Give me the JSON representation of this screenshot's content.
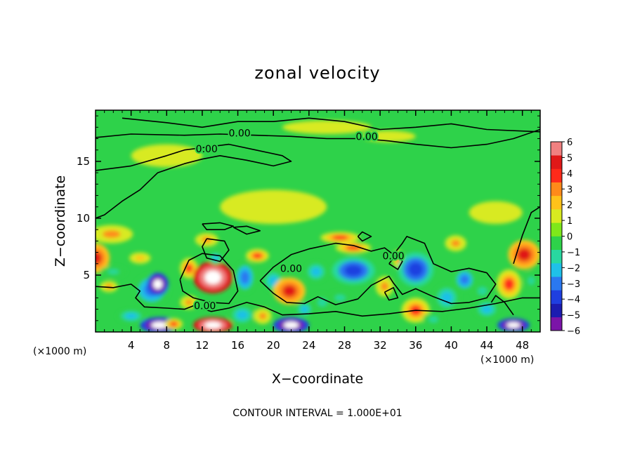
{
  "chart_data": {
    "type": "heatmap",
    "title": "zonal velocity",
    "xlabel": "X−coordinate",
    "ylabel": "Z−coordinate",
    "x_unit_left": "(×1000 m)",
    "x_unit_right": "(×1000 m)",
    "footer": "CONTOUR INTERVAL = 1.000E+01",
    "xlim": [
      0,
      50
    ],
    "ylim": [
      0,
      19.5
    ],
    "x_ticks": [
      4,
      8,
      12,
      16,
      20,
      24,
      28,
      32,
      36,
      40,
      44,
      48
    ],
    "x_tick_labels": [
      "4",
      "8",
      "12",
      "16",
      "20",
      "24",
      "28",
      "32",
      "36",
      "40",
      "44",
      "48"
    ],
    "y_ticks": [
      5,
      10,
      15
    ],
    "y_tick_labels": [
      "5",
      "10",
      "15"
    ],
    "contour_labels": [
      {
        "text": "0.00",
        "x": 16.2,
        "z": 17.5
      },
      {
        "text": "0.00",
        "x": 12.5,
        "z": 16.1
      },
      {
        "text": "0.00",
        "x": 30.5,
        "z": 17.2
      },
      {
        "text": "0.00",
        "x": 22.0,
        "z": 5.6
      },
      {
        "text": "0.00",
        "x": 12.3,
        "z": 2.3
      },
      {
        "text": "0.00",
        "x": 33.5,
        "z": 6.7
      }
    ],
    "colorbar": {
      "levels": [
        -6,
        -5,
        -4,
        -3,
        -2,
        -1,
        0,
        1,
        2,
        3,
        4,
        5,
        6
      ],
      "labels": [
        "−6",
        "−5",
        "−4",
        "−3",
        "−2",
        "−1",
        "0",
        "1",
        "2",
        "3",
        "4",
        "5",
        "6"
      ],
      "colors": [
        "#7b14a8",
        "#1c1cb0",
        "#1f3fe0",
        "#2a78f0",
        "#1fc0e8",
        "#28d8a0",
        "#2ed24a",
        "#7ee81a",
        "#d8ea20",
        "#ffc21a",
        "#ff8a1a",
        "#ff2a1a",
        "#e01818",
        "#f08080"
      ]
    },
    "features": [
      {
        "x": 0.0,
        "z": 6.5,
        "v": 5,
        "rx": 1.6,
        "rz": 1.3
      },
      {
        "x": 2.0,
        "z": 5.3,
        "v": -2,
        "rx": 1.5,
        "rz": 0.5
      },
      {
        "x": 1.5,
        "z": 4.0,
        "v": 3,
        "rx": 1.0,
        "rz": 0.5
      },
      {
        "x": 1.8,
        "z": 8.6,
        "v": 3,
        "rx": 2.4,
        "rz": 0.8
      },
      {
        "x": 5.0,
        "z": 6.5,
        "v": 2,
        "rx": 1.2,
        "rz": 0.5
      },
      {
        "x": 6.3,
        "z": 3.7,
        "v": -4,
        "rx": 2.0,
        "rz": 1.4
      },
      {
        "x": 7.0,
        "z": 4.2,
        "v": -8,
        "rx": 1.2,
        "rz": 1.0
      },
      {
        "x": 7.2,
        "z": 0.6,
        "v": -8,
        "rx": 2.2,
        "rz": 0.7
      },
      {
        "x": 4.0,
        "z": 1.4,
        "v": -3,
        "rx": 1.6,
        "rz": 0.6
      },
      {
        "x": 8.8,
        "z": 0.7,
        "v": 4,
        "rx": 1.0,
        "rz": 0.5
      },
      {
        "x": 10.5,
        "z": 5.6,
        "v": 4,
        "rx": 1.0,
        "rz": 0.9
      },
      {
        "x": 13.2,
        "z": 4.8,
        "v": 8,
        "rx": 2.2,
        "rz": 1.4
      },
      {
        "x": 13.2,
        "z": 0.6,
        "v": 8,
        "rx": 2.2,
        "rz": 0.7
      },
      {
        "x": 10.5,
        "z": 2.6,
        "v": 3,
        "rx": 1.0,
        "rz": 0.6
      },
      {
        "x": 12.5,
        "z": 8.1,
        "v": 3,
        "rx": 1.3,
        "rz": 0.6
      },
      {
        "x": 13.5,
        "z": 6.5,
        "v": -3,
        "rx": 0.8,
        "rz": 0.6
      },
      {
        "x": 16.8,
        "z": 4.8,
        "v": -4,
        "rx": 1.2,
        "rz": 1.4
      },
      {
        "x": 16.5,
        "z": 1.5,
        "v": -3,
        "rx": 1.5,
        "rz": 0.9
      },
      {
        "x": 18.2,
        "z": 6.7,
        "v": 4,
        "rx": 1.3,
        "rz": 0.6
      },
      {
        "x": 18.8,
        "z": 1.4,
        "v": 3,
        "rx": 1.0,
        "rz": 0.7
      },
      {
        "x": 20.0,
        "z": 4.5,
        "v": -3,
        "rx": 1.2,
        "rz": 1.0
      },
      {
        "x": 21.8,
        "z": 3.6,
        "v": 5,
        "rx": 1.8,
        "rz": 1.2
      },
      {
        "x": 22.0,
        "z": 0.6,
        "v": -8,
        "rx": 2.0,
        "rz": 0.7
      },
      {
        "x": 23.5,
        "z": 2.0,
        "v": -3,
        "rx": 1.0,
        "rz": 0.7
      },
      {
        "x": 24.8,
        "z": 5.3,
        "v": -3,
        "rx": 1.3,
        "rz": 0.9
      },
      {
        "x": 25.5,
        "z": 2.6,
        "v": -2,
        "rx": 1.2,
        "rz": 0.8
      },
      {
        "x": 27.5,
        "z": 8.3,
        "v": 4,
        "rx": 2.2,
        "rz": 0.5
      },
      {
        "x": 29.0,
        "z": 5.4,
        "v": -5,
        "rx": 2.4,
        "rz": 1.2
      },
      {
        "x": 29.0,
        "z": 7.4,
        "v": 4,
        "rx": 2.0,
        "rz": 0.5
      },
      {
        "x": 27.5,
        "z": 3.0,
        "v": -2,
        "rx": 1.4,
        "rz": 0.6
      },
      {
        "x": 32.5,
        "z": 4.0,
        "v": 3,
        "rx": 1.0,
        "rz": 0.9
      },
      {
        "x": 34.0,
        "z": 6.4,
        "v": 3,
        "rx": 0.6,
        "rz": 0.8
      },
      {
        "x": 36.0,
        "z": 5.5,
        "v": -5,
        "rx": 2.0,
        "rz": 1.5
      },
      {
        "x": 36.0,
        "z": 1.9,
        "v": 4,
        "rx": 1.6,
        "rz": 1.1
      },
      {
        "x": 38.0,
        "z": 1.1,
        "v": -2,
        "rx": 1.2,
        "rz": 0.6
      },
      {
        "x": 39.5,
        "z": 3.0,
        "v": -3,
        "rx": 1.5,
        "rz": 1.2
      },
      {
        "x": 40.5,
        "z": 7.8,
        "v": 3,
        "rx": 1.2,
        "rz": 0.7
      },
      {
        "x": 41.5,
        "z": 4.6,
        "v": -4,
        "rx": 1.2,
        "rz": 1.0
      },
      {
        "x": 43.5,
        "z": 3.6,
        "v": -2,
        "rx": 1.2,
        "rz": 0.8
      },
      {
        "x": 44.0,
        "z": 2.0,
        "v": -3,
        "rx": 1.4,
        "rz": 0.8
      },
      {
        "x": 46.5,
        "z": 4.2,
        "v": 4,
        "rx": 1.4,
        "rz": 1.3
      },
      {
        "x": 48.2,
        "z": 6.8,
        "v": 5,
        "rx": 1.8,
        "rz": 1.3
      },
      {
        "x": 47.0,
        "z": 0.6,
        "v": -8,
        "rx": 1.8,
        "rz": 0.6
      },
      {
        "x": 49.0,
        "z": 4.5,
        "v": -2,
        "rx": 0.8,
        "rz": 0.8
      },
      {
        "x": 26.0,
        "z": 18.0,
        "v": 1.5,
        "rx": 5.0,
        "rz": 0.6
      },
      {
        "x": 33.0,
        "z": 17.2,
        "v": 1.5,
        "rx": 3.0,
        "rz": 0.5
      },
      {
        "x": 8.0,
        "z": 15.5,
        "v": 1.2,
        "rx": 4.0,
        "rz": 1.0
      },
      {
        "x": 45.0,
        "z": 10.5,
        "v": 1.2,
        "rx": 3.0,
        "rz": 1.0
      },
      {
        "x": 20.0,
        "z": 11.0,
        "v": 1.0,
        "rx": 6.0,
        "rz": 1.5
      }
    ],
    "contours": [
      [
        [
          0,
          17.1
        ],
        [
          4,
          17.4
        ],
        [
          10,
          17.3
        ],
        [
          14,
          17.4
        ],
        [
          18,
          17.3
        ],
        [
          22,
          17.2
        ],
        [
          26,
          17.0
        ],
        [
          30,
          17.0
        ],
        [
          33,
          16.8
        ],
        [
          36,
          16.5
        ],
        [
          40,
          16.2
        ],
        [
          44,
          16.5
        ],
        [
          47,
          17.0
        ],
        [
          50,
          17.8
        ]
      ],
      [
        [
          3,
          18.8
        ],
        [
          8,
          18.4
        ],
        [
          12,
          18.0
        ],
        [
          16,
          18.5
        ],
        [
          20,
          18.5
        ],
        [
          24,
          18.8
        ],
        [
          28,
          18.5
        ],
        [
          32,
          17.8
        ],
        [
          36,
          18.0
        ],
        [
          40,
          18.3
        ],
        [
          44,
          17.8
        ],
        [
          50,
          17.6
        ]
      ],
      [
        [
          0,
          14.2
        ],
        [
          4,
          14.6
        ],
        [
          8,
          15.5
        ],
        [
          10,
          16.0
        ],
        [
          12,
          16.2
        ],
        [
          15,
          16.5
        ],
        [
          18,
          16.0
        ],
        [
          21,
          15.5
        ],
        [
          22,
          15.0
        ],
        [
          20,
          14.6
        ],
        [
          17,
          15.1
        ],
        [
          14,
          15.5
        ],
        [
          12,
          15.2
        ],
        [
          10,
          14.8
        ],
        [
          7,
          14.0
        ],
        [
          5,
          12.5
        ],
        [
          3,
          11.5
        ],
        [
          1,
          10.3
        ],
        [
          0,
          10.0
        ]
      ],
      [
        [
          0,
          4.0
        ],
        [
          2,
          3.9
        ],
        [
          4,
          4.2
        ],
        [
          5,
          3.6
        ],
        [
          4.5,
          3.0
        ],
        [
          5.5,
          2.2
        ],
        [
          8,
          2.1
        ],
        [
          10,
          2.0
        ],
        [
          11,
          2.3
        ],
        [
          13,
          1.8
        ],
        [
          15,
          2.1
        ],
        [
          17,
          2.6
        ],
        [
          19,
          2.2
        ],
        [
          21,
          1.5
        ],
        [
          24,
          1.6
        ],
        [
          27,
          1.8
        ],
        [
          30,
          1.4
        ],
        [
          33,
          1.6
        ],
        [
          36,
          1.9
        ],
        [
          39,
          1.8
        ],
        [
          42,
          2.1
        ],
        [
          45,
          2.5
        ],
        [
          48,
          3.0
        ],
        [
          50,
          3.0
        ]
      ],
      [
        [
          9.5,
          4.6
        ],
        [
          10.5,
          6.3
        ],
        [
          12,
          6.9
        ],
        [
          14,
          6.7
        ],
        [
          15.5,
          5.4
        ],
        [
          16,
          3.6
        ],
        [
          15,
          2.5
        ],
        [
          13,
          2.6
        ],
        [
          11,
          3.0
        ],
        [
          9.8,
          3.6
        ],
        [
          9.5,
          4.6
        ]
      ],
      [
        [
          18.5,
          4.5
        ],
        [
          20,
          5.7
        ],
        [
          22,
          6.8
        ],
        [
          24,
          7.3
        ],
        [
          27,
          7.8
        ],
        [
          29,
          7.6
        ],
        [
          31,
          7.1
        ],
        [
          32.5,
          7.4
        ],
        [
          33.5,
          6.8
        ],
        [
          34.5,
          7.8
        ],
        [
          35,
          8.4
        ],
        [
          37,
          7.8
        ],
        [
          38,
          6.0
        ],
        [
          40,
          5.3
        ],
        [
          42,
          5.6
        ],
        [
          44,
          5.2
        ],
        [
          45,
          4.2
        ],
        [
          44,
          3.0
        ],
        [
          42,
          2.6
        ],
        [
          40,
          2.5
        ],
        [
          38,
          3.1
        ],
        [
          36,
          3.8
        ],
        [
          34.5,
          3.3
        ],
        [
          33.5,
          4.3
        ],
        [
          33,
          4.9
        ],
        [
          31,
          4.1
        ],
        [
          29.5,
          2.9
        ],
        [
          27,
          2.4
        ],
        [
          25,
          3.1
        ],
        [
          23.5,
          2.5
        ],
        [
          21.5,
          2.6
        ],
        [
          20,
          3.4
        ],
        [
          18.5,
          4.5
        ]
      ],
      [
        [
          12,
          9.5
        ],
        [
          14,
          9.6
        ],
        [
          15.5,
          9.3
        ],
        [
          14.5,
          9.0
        ],
        [
          12.5,
          9.0
        ],
        [
          12,
          9.5
        ]
      ],
      [
        [
          15.5,
          9.2
        ],
        [
          17,
          9.3
        ],
        [
          18.5,
          8.9
        ],
        [
          17,
          8.6
        ],
        [
          15.5,
          9.2
        ]
      ],
      [
        [
          12.5,
          8.2
        ],
        [
          14.5,
          8.0
        ],
        [
          15,
          7.2
        ],
        [
          14,
          6.2
        ],
        [
          12.5,
          6.5
        ],
        [
          12,
          7.5
        ],
        [
          12.5,
          8.2
        ]
      ],
      [
        [
          33,
          6.0
        ],
        [
          34,
          7.0
        ],
        [
          34.5,
          6.2
        ],
        [
          34,
          5.5
        ],
        [
          33,
          6.0
        ]
      ],
      [
        [
          32.5,
          3.5
        ],
        [
          33.5,
          3.9
        ],
        [
          34,
          3.0
        ],
        [
          33,
          2.8
        ],
        [
          32.5,
          3.5
        ]
      ],
      [
        [
          29.5,
          8.4
        ],
        [
          30,
          8.8
        ],
        [
          31,
          8.4
        ],
        [
          30,
          8.0
        ],
        [
          29.5,
          8.4
        ]
      ],
      [
        [
          47,
          6.0
        ],
        [
          48,
          8.5
        ],
        [
          49,
          10.5
        ],
        [
          50,
          11.0
        ]
      ],
      [
        [
          47,
          1.5
        ],
        [
          46,
          2.6
        ],
        [
          45,
          3.2
        ],
        [
          44.5,
          2.6
        ]
      ]
    ]
  }
}
